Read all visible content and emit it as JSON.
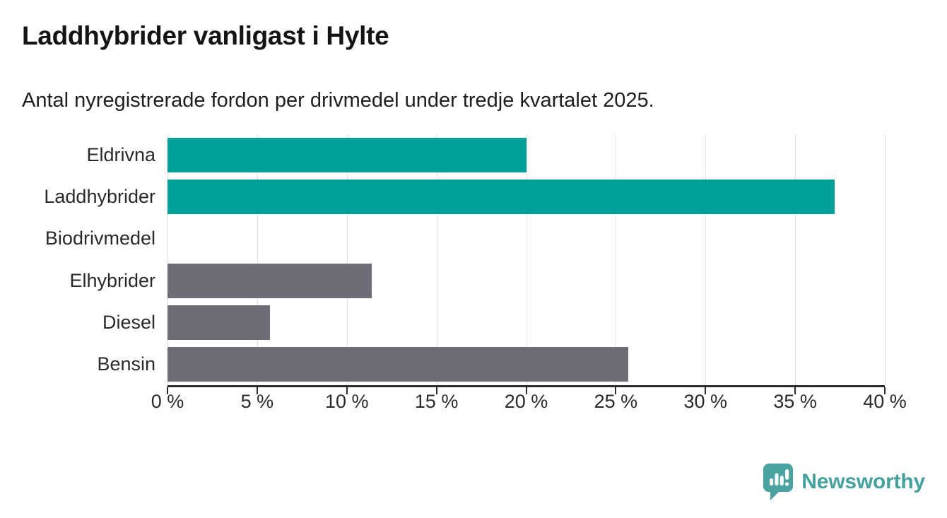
{
  "header": {
    "title": "Laddhybrider vanligast i Hylte",
    "subtitle": "Antal nyregistrerade fordon per drivmedel under tredje kvartalet 2025."
  },
  "chart_data": {
    "type": "bar",
    "orientation": "horizontal",
    "title": "Laddhybrider vanligast i Hylte",
    "subtitle": "Antal nyregistrerade fordon per drivmedel under tredje kvartalet 2025.",
    "categories": [
      "Eldrivna",
      "Laddhybrider",
      "Biodrivmedel",
      "Elhybrider",
      "Diesel",
      "Bensin"
    ],
    "values": [
      20.0,
      37.2,
      0.0,
      11.4,
      5.7,
      25.7
    ],
    "unit": "%",
    "bar_colors": [
      "#00a099",
      "#00a099",
      "#6e6d75",
      "#6e6d75",
      "#6e6d75",
      "#6e6d75"
    ],
    "xlabel": "",
    "ylabel": "",
    "xlim": [
      0,
      40
    ],
    "x_ticks": [
      0,
      5,
      10,
      15,
      20,
      25,
      30,
      35,
      40
    ],
    "x_tick_labels": [
      "0 %",
      "5 %",
      "10 %",
      "15 %",
      "20 %",
      "25 %",
      "30 %",
      "35 %",
      "40 %"
    ],
    "grid": "vertical-on",
    "legend": "none"
  },
  "colors": {
    "bar_teal": "#00a099",
    "bar_gray": "#6e6d75",
    "gridline": "#e2e2e2",
    "axis": "#2d2d2d",
    "text": "#2a2a2a",
    "brand_teal": "#44a19e"
  },
  "branding": {
    "logo_text": "Newsworthy",
    "logo_icon": "newsworthy-speech-bubble-chart-icon"
  }
}
